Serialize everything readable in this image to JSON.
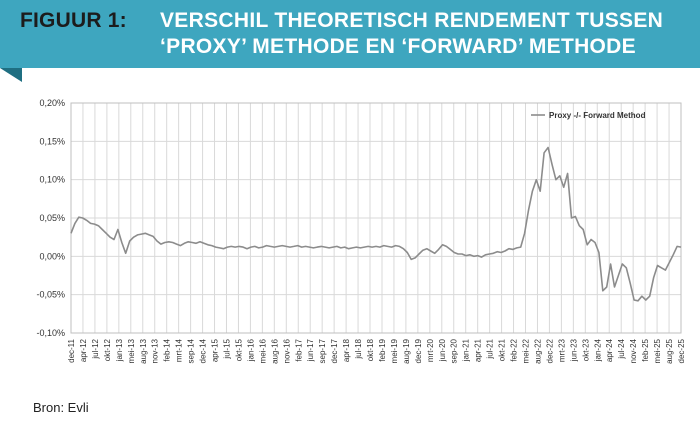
{
  "header": {
    "figure_label": "FIGUUR 1:",
    "title_line1": "VERSCHIL THEORETISCH RENDEMENT TUSSEN",
    "title_line2": "‘PROXY’ METHODE EN ‘FORWARD’ METHODE"
  },
  "source": "Bron: Evli",
  "colors": {
    "banner": "#3ea6bf",
    "banner_fold": "#1f6f82",
    "line": "#8c8c8c",
    "grid": "#d9d9d9"
  },
  "chart_data": {
    "type": "line",
    "title": "",
    "xlabel": "",
    "ylabel": "",
    "ylim": [
      -0.1,
      0.2
    ],
    "y_ticks": [
      "0,20%",
      "0,15%",
      "0,10%",
      "0,05%",
      "0,00%",
      "-0,05%",
      "-0,10%"
    ],
    "x_ticks": [
      "dec-11",
      "apr-12",
      "jul-12",
      "okt-12",
      "jan-13",
      "mei-13",
      "aug-13",
      "nov-13",
      "feb-14",
      "mrt-14",
      "sep-14",
      "dec-14",
      "apr-15",
      "jul-15",
      "okt-15",
      "jan-16",
      "mei-16",
      "aug-16",
      "nov-16",
      "feb-17",
      "jun-17",
      "sep-17",
      "dec-17",
      "apr-18",
      "jul-18",
      "okt-18",
      "feb-19",
      "mei-19",
      "aug-19",
      "dec-19",
      "mrt-20",
      "jun-20",
      "sep-20",
      "jan-21",
      "apr-21",
      "jul-21",
      "okt-21",
      "feb-22",
      "mei-22",
      "aug-22",
      "dec-22",
      "mrt-23",
      "jun-23",
      "okt-23",
      "jan-24",
      "apr-24",
      "jul-24",
      "nov-24",
      "feb-25",
      "mei-25",
      "aug-25",
      "dec-25"
    ],
    "legend": "top-right",
    "series": [
      {
        "name": "Proxy -/- Forward Method",
        "values": [
          0.03,
          0.043,
          0.051,
          0.05,
          0.047,
          0.043,
          0.042,
          0.04,
          0.035,
          0.03,
          0.025,
          0.022,
          0.035,
          0.018,
          0.004,
          0.02,
          0.025,
          0.028,
          0.029,
          0.03,
          0.028,
          0.026,
          0.02,
          0.016,
          0.018,
          0.019,
          0.018,
          0.016,
          0.014,
          0.017,
          0.019,
          0.018,
          0.017,
          0.019,
          0.017,
          0.015,
          0.014,
          0.012,
          0.011,
          0.01,
          0.012,
          0.013,
          0.012,
          0.013,
          0.012,
          0.01,
          0.012,
          0.013,
          0.011,
          0.012,
          0.014,
          0.013,
          0.012,
          0.013,
          0.014,
          0.013,
          0.012,
          0.013,
          0.014,
          0.012,
          0.013,
          0.012,
          0.011,
          0.012,
          0.013,
          0.012,
          0.011,
          0.012,
          0.013,
          0.011,
          0.012,
          0.01,
          0.011,
          0.012,
          0.011,
          0.012,
          0.013,
          0.012,
          0.013,
          0.012,
          0.014,
          0.013,
          0.012,
          0.014,
          0.013,
          0.01,
          0.005,
          -0.004,
          -0.002,
          0.003,
          0.008,
          0.01,
          0.007,
          0.004,
          0.009,
          0.015,
          0.013,
          0.009,
          0.005,
          0.003,
          0.003,
          0.001,
          0.002,
          0.0,
          0.001,
          -0.001,
          0.002,
          0.003,
          0.004,
          0.006,
          0.005,
          0.007,
          0.01,
          0.009,
          0.011,
          0.012,
          0.03,
          0.06,
          0.085,
          0.1,
          0.085,
          0.135,
          0.142,
          0.12,
          0.1,
          0.105,
          0.09,
          0.108,
          0.05,
          0.052,
          0.04,
          0.035,
          0.015,
          0.022,
          0.018,
          0.005,
          -0.045,
          -0.04,
          -0.01,
          -0.04,
          -0.025,
          -0.01,
          -0.015,
          -0.035,
          -0.057,
          -0.058,
          -0.052,
          -0.057,
          -0.052,
          -0.028,
          -0.012,
          -0.015,
          -0.018,
          -0.008,
          0.002,
          0.013,
          0.012
        ]
      }
    ]
  }
}
